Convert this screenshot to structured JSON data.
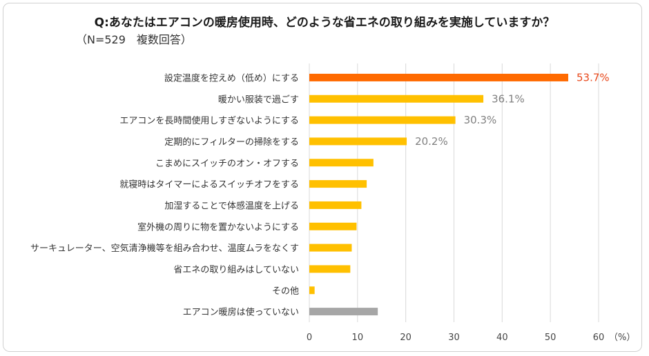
{
  "title": "Q:あなたはエアコンの暖房使用時、どのような省エネの取り組みを実施していますか？",
  "subtitle": "（N=529　複数回答）",
  "colors": {
    "highlight": "#ff6a00",
    "bar": "#ffc000",
    "gray": "#a6a6a6",
    "highlight_label": "#e8471a",
    "label": "#7f7f7f",
    "grid": "#d9d9d9"
  },
  "chart_data": {
    "type": "bar",
    "orientation": "horizontal",
    "categories": [
      "設定温度を控えめ（低め）にする",
      "暖かい服装で過ごす",
      "エアコンを長時間使用しすぎないようにする",
      "定期的にフィルターの掃除をする",
      "こまめにスイッチのオン・オフする",
      "就寝時はタイマーによるスイッチオフをする",
      "加湿することで体感温度を上げる",
      "室外機の周りに物を置かないようにする",
      "サーキュレーター、空気清浄機等を組み合わせ、温度ムラをなくす",
      "省エネの取り組みはしていない",
      "その他",
      "エアコン暖房は使っていない"
    ],
    "values": [
      53.7,
      36.1,
      30.3,
      20.2,
      13.3,
      11.9,
      10.8,
      9.8,
      8.8,
      8.5,
      1.1,
      14.2
    ],
    "data_labels": [
      "53.7%",
      "36.1%",
      "30.3%",
      "20.2%",
      "",
      "",
      "",
      "",
      "",
      "",
      "",
      ""
    ],
    "bar_colors": [
      "highlight",
      "bar",
      "bar",
      "bar",
      "bar",
      "bar",
      "bar",
      "bar",
      "bar",
      "bar",
      "bar",
      "gray"
    ],
    "xlim": [
      0,
      60
    ],
    "xticks": [
      "0",
      "10",
      "20",
      "30",
      "40",
      "50",
      "60"
    ],
    "unit_label": "（%）",
    "grid": true
  }
}
